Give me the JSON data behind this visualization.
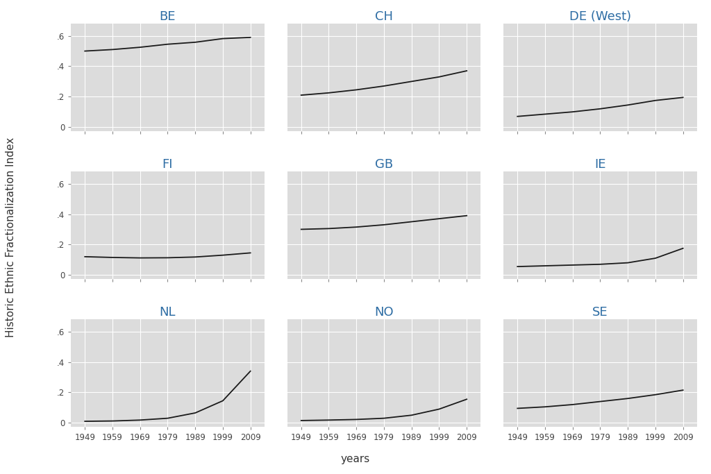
{
  "countries": [
    "BE",
    "CH",
    "DE (West)",
    "FI",
    "GB",
    "IE",
    "NL",
    "NO",
    "SE"
  ],
  "years": [
    1949,
    1959,
    1969,
    1979,
    1989,
    1999,
    2009
  ],
  "data": {
    "BE": [
      0.5,
      0.51,
      0.525,
      0.545,
      0.558,
      0.582,
      0.59
    ],
    "CH": [
      0.21,
      0.225,
      0.245,
      0.27,
      0.3,
      0.33,
      0.37
    ],
    "DE (West)": [
      0.07,
      0.085,
      0.1,
      0.12,
      0.145,
      0.175,
      0.195
    ],
    "FI": [
      0.12,
      0.115,
      0.112,
      0.113,
      0.118,
      0.13,
      0.145
    ],
    "GB": [
      0.3,
      0.305,
      0.315,
      0.33,
      0.35,
      0.37,
      0.39
    ],
    "IE": [
      0.055,
      0.06,
      0.065,
      0.07,
      0.08,
      0.11,
      0.175
    ],
    "NL": [
      0.01,
      0.012,
      0.018,
      0.03,
      0.065,
      0.145,
      0.34
    ],
    "NO": [
      0.015,
      0.018,
      0.022,
      0.03,
      0.05,
      0.09,
      0.155
    ],
    "SE": [
      0.095,
      0.105,
      0.12,
      0.14,
      0.16,
      0.185,
      0.215
    ]
  },
  "xlim": [
    1944,
    2014
  ],
  "ylim": [
    -0.025,
    0.68
  ],
  "yticks": [
    0.0,
    0.2,
    0.4,
    0.6
  ],
  "ytick_labels": [
    "0",
    ".2",
    ".4",
    ".6"
  ],
  "xticks": [
    1949,
    1959,
    1969,
    1979,
    1989,
    1999,
    2009
  ],
  "xtick_labels": [
    "1949",
    "1959",
    "1969",
    "1979",
    "1989",
    "1999",
    "2009"
  ],
  "xlabel": "years",
  "ylabel": "Historic Ethnic Fractionalization Index",
  "panel_bg": "#dcdcdc",
  "figure_bg": "#ffffff",
  "line_color": "#1a1a1a",
  "line_width": 1.3,
  "title_color": "#2e6da4",
  "title_fontsize": 13,
  "axis_label_fontsize": 11,
  "tick_fontsize": 8.5,
  "grid_color": "#ffffff",
  "grid_linewidth": 0.8
}
